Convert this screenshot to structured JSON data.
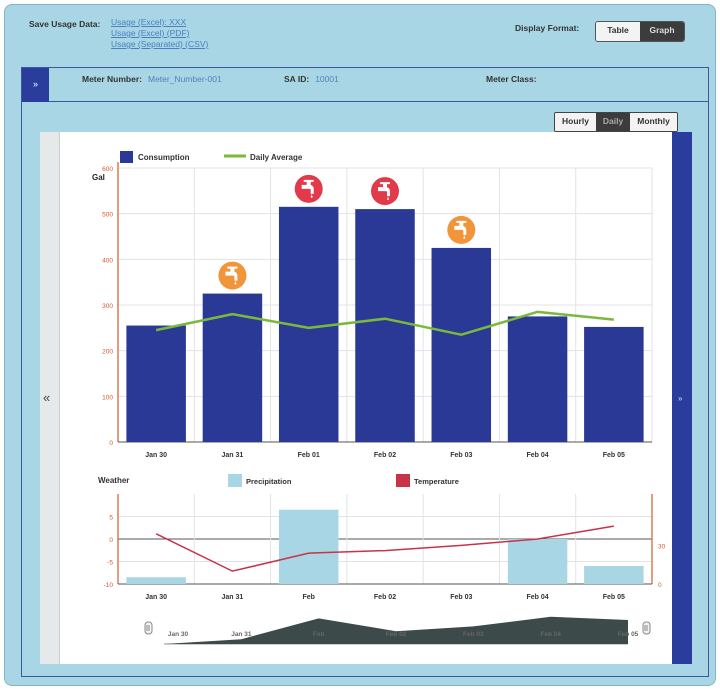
{
  "header": {
    "save_usage_label": "Save Usage Data:",
    "save_links": [
      "Usage (Excel): XXX",
      "Usage (Excel) (PDF)",
      "Usage (Separated) (CSV)"
    ],
    "display_format_label": "Display Format:",
    "format_options": [
      "Table",
      "Graph"
    ],
    "format_selected": "Graph"
  },
  "meter_info": {
    "collapse_symbol": "»",
    "meter_number_label": "Meter Number:",
    "meter_number_value": "Meter_Number-001",
    "sa_id_label": "SA ID:",
    "sa_id_value": "10001",
    "meter_class_label": "Meter Class:"
  },
  "period": {
    "options": [
      "Hourly",
      "Daily",
      "Monthly"
    ],
    "selected": "Daily"
  },
  "nav": {
    "prev_symbol": "«",
    "next_symbol": "»"
  },
  "consumption_legend": {
    "consumption": "Consumption",
    "daily_average": "Daily Average"
  },
  "colors": {
    "bar": "#2a3896",
    "average_line": "#7ab93c",
    "axis": "#d35b2c",
    "alert_red": "#e23a4b",
    "alert_orange": "#f0953a",
    "precipitation": "#a9d6e4",
    "temperature": "#c8334a",
    "navigator_fill": "#3c4a4a"
  },
  "weather_legend": {
    "weather": "Weather",
    "precipitation": "Precipitation",
    "temperature": "Temperature"
  },
  "icons": {
    "alert": "faucet-icon"
  },
  "chart_data": [
    {
      "type": "bar",
      "ylabel": "Gal",
      "categories": [
        "Jan 30",
        "Jan 31",
        "Feb 01",
        "Feb 02",
        "Feb 03",
        "Feb 04",
        "Feb 05"
      ],
      "series": [
        {
          "name": "Consumption",
          "type": "bar",
          "values": [
            255,
            325,
            515,
            510,
            425,
            275,
            252
          ]
        },
        {
          "name": "Daily Average",
          "type": "line",
          "values": [
            245,
            280,
            250,
            270,
            235,
            285,
            268
          ]
        }
      ],
      "alerts": [
        "none",
        "orange",
        "red",
        "red",
        "orange",
        "none",
        "none"
      ],
      "ylim": [
        0,
        600
      ],
      "yticks": [
        0,
        100,
        200,
        300,
        400,
        500,
        600
      ],
      "grid": true,
      "legend": "top-left"
    },
    {
      "type": "bar",
      "categories": [
        "Jan 30",
        "Jan 31",
        "Feb",
        "Feb 02",
        "Feb 03",
        "Feb 04",
        "Feb 05"
      ],
      "series": [
        {
          "name": "Precipitation",
          "type": "bar",
          "values": [
            -8.5,
            null,
            6.5,
            null,
            null,
            0,
            -6
          ]
        },
        {
          "name": "Temperature",
          "type": "line",
          "values": [
            39,
            10,
            24,
            26,
            30,
            35,
            45
          ]
        }
      ],
      "ylim_left": [
        -10,
        10
      ],
      "yticks_left": [
        -10,
        -5,
        0,
        5
      ],
      "ylim_right": [
        0,
        70
      ],
      "grid": true,
      "legend": "top"
    },
    {
      "type": "area",
      "categories": [
        "Jan 30",
        "Jan 31",
        "Feb",
        "Feb 02",
        "Feb 03",
        "Feb 04",
        "Feb 05"
      ],
      "values": [
        0,
        15,
        80,
        40,
        55,
        85,
        75
      ],
      "ylim": [
        0,
        100
      ],
      "grid": false
    }
  ]
}
